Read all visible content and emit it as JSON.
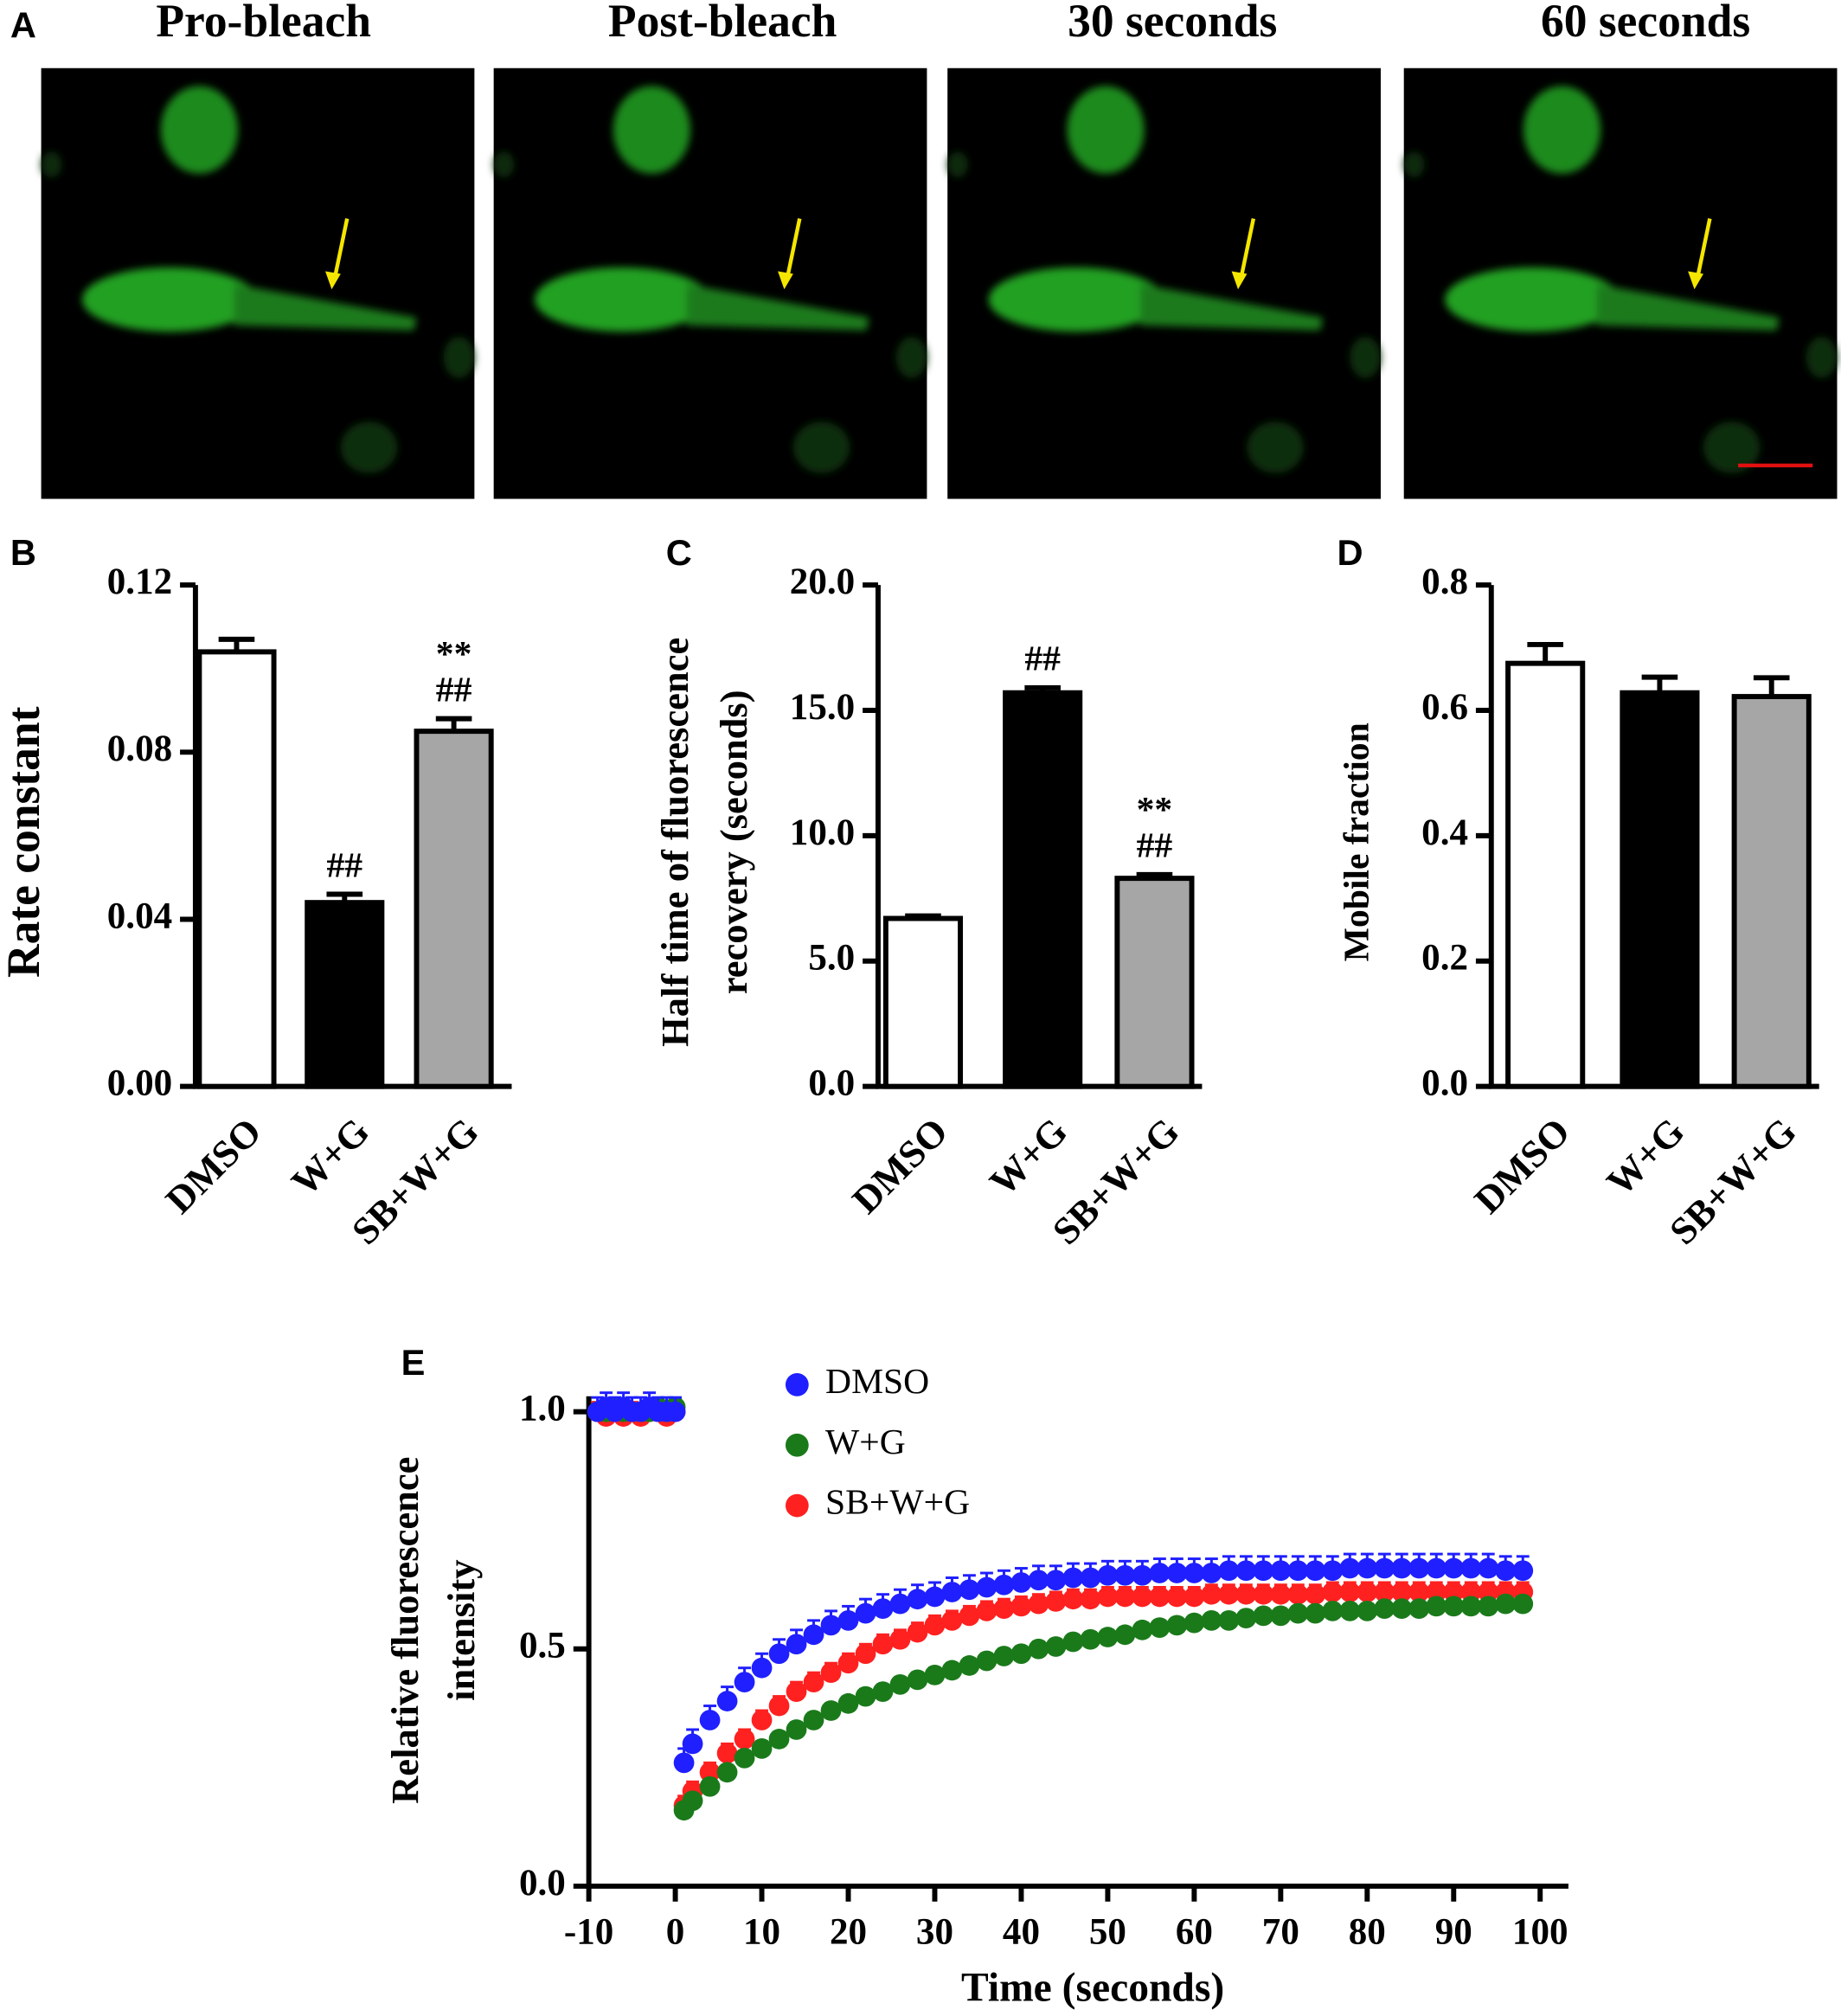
{
  "panel_a": {
    "label": "A",
    "titles": [
      "Pro-bleach",
      "Post-bleach",
      "30 seconds",
      "60 seconds"
    ]
  },
  "chart_data": [
    {
      "type": "bar",
      "label": "B",
      "ylabel": "Rate constant",
      "categories": [
        "DMSO",
        "W+G",
        "SB+W+G"
      ],
      "values": [
        0.104,
        0.044,
        0.085
      ],
      "errors": [
        0.003,
        0.002,
        0.003
      ],
      "colors": [
        "#ffffff",
        "#000000",
        "#a6a6a6"
      ],
      "bar_labels": [
        [],
        [
          "##"
        ],
        [
          "**",
          "##"
        ]
      ],
      "ylim": [
        0,
        0.12
      ],
      "yticks": [
        {
          "value": 0,
          "label": "0.00"
        },
        0.04,
        0.08,
        0.12
      ]
    },
    {
      "type": "bar",
      "label": "C",
      "ylabel": [
        "Half time of fluorescence",
        "recovery (seconds)"
      ],
      "categories": [
        "DMSO",
        "W+G",
        "SB+W+G"
      ],
      "values": [
        6.7,
        15.7,
        8.3
      ],
      "errors": [
        0.1,
        0.2,
        0.15
      ],
      "colors": [
        "#ffffff",
        "#000000",
        "#a6a6a6"
      ],
      "bar_labels": [
        [],
        [
          "##"
        ],
        [
          "**",
          "##"
        ]
      ],
      "ylim": [
        0,
        20
      ],
      "yticks": [
        {
          "value": 0,
          "label": "0.0"
        },
        {
          "value": 5,
          "label": "5.0"
        },
        {
          "value": 10,
          "label": "10.0"
        },
        {
          "value": 15,
          "label": "15.0"
        },
        {
          "value": 20,
          "label": "20.0"
        }
      ]
    },
    {
      "type": "bar",
      "label": "D",
      "ylabel": "Mobile fraction",
      "categories": [
        "DMSO",
        "W+G",
        "SB+W+G"
      ],
      "values": [
        0.675,
        0.628,
        0.622
      ],
      "errors": [
        0.03,
        0.025,
        0.03
      ],
      "colors": [
        "#ffffff",
        "#000000",
        "#a6a6a6"
      ],
      "bar_labels": [
        [],
        [],
        []
      ],
      "ylim": [
        0,
        0.8
      ],
      "yticks": [
        {
          "value": 0,
          "label": "0.0"
        },
        0.2,
        0.4,
        0.6,
        0.8
      ]
    },
    {
      "type": "scatter",
      "label": "E",
      "xlabel": "Time (seconds)",
      "ylabel": [
        "Relative fluorescence",
        "intensity"
      ],
      "legend": "top",
      "x": [
        -9,
        -8,
        -7,
        -6,
        -5,
        -4,
        -3,
        -2,
        -1,
        0,
        1,
        2,
        4,
        6,
        8,
        10,
        12,
        14,
        16,
        18,
        20,
        22,
        24,
        26,
        28,
        30,
        32,
        34,
        36,
        38,
        40,
        42,
        44,
        46,
        48,
        50,
        52,
        54,
        56,
        58,
        60,
        62,
        64,
        66,
        68,
        70,
        72,
        74,
        76,
        78,
        80,
        82,
        84,
        86,
        88,
        90,
        92,
        94,
        96,
        98
      ],
      "series": [
        {
          "name": "DMSO",
          "color": "#1f1fff",
          "error": 0.03,
          "values": [
            1.0,
            1.01,
            1.0,
            1.01,
            1.0,
            1.0,
            1.01,
            1.0,
            1.0,
            1.0,
            0.26,
            0.3,
            0.35,
            0.39,
            0.43,
            0.46,
            0.49,
            0.51,
            0.53,
            0.55,
            0.56,
            0.575,
            0.585,
            0.595,
            0.605,
            0.61,
            0.62,
            0.625,
            0.63,
            0.635,
            0.64,
            0.645,
            0.645,
            0.65,
            0.65,
            0.655,
            0.655,
            0.655,
            0.66,
            0.66,
            0.66,
            0.66,
            0.665,
            0.665,
            0.665,
            0.665,
            0.665,
            0.665,
            0.665,
            0.67,
            0.67,
            0.67,
            0.67,
            0.67,
            0.67,
            0.67,
            0.67,
            0.67,
            0.665,
            0.665
          ]
        },
        {
          "name": "W+G",
          "color": "#1a7a1a",
          "error": 0.015,
          "values": [
            1.0,
            1.0,
            1.01,
            1.0,
            1.0,
            1.0,
            1.0,
            1.01,
            1.0,
            1.01,
            0.16,
            0.18,
            0.21,
            0.24,
            0.27,
            0.29,
            0.31,
            0.33,
            0.35,
            0.37,
            0.385,
            0.4,
            0.41,
            0.425,
            0.435,
            0.445,
            0.455,
            0.465,
            0.475,
            0.485,
            0.49,
            0.5,
            0.505,
            0.515,
            0.52,
            0.525,
            0.53,
            0.54,
            0.545,
            0.55,
            0.555,
            0.56,
            0.56,
            0.565,
            0.57,
            0.57,
            0.575,
            0.575,
            0.58,
            0.58,
            0.58,
            0.585,
            0.585,
            0.585,
            0.59,
            0.59,
            0.59,
            0.59,
            0.595,
            0.595
          ]
        },
        {
          "name": "SB+W+G",
          "color": "#ff2020",
          "error": 0.02,
          "values": [
            1.0,
            0.99,
            1.0,
            0.99,
            1.0,
            0.99,
            1.0,
            1.0,
            0.99,
            1.0,
            0.17,
            0.2,
            0.24,
            0.28,
            0.31,
            0.35,
            0.38,
            0.41,
            0.43,
            0.45,
            0.47,
            0.49,
            0.51,
            0.52,
            0.535,
            0.55,
            0.56,
            0.57,
            0.58,
            0.585,
            0.59,
            0.595,
            0.6,
            0.605,
            0.605,
            0.61,
            0.61,
            0.61,
            0.61,
            0.61,
            0.61,
            0.615,
            0.615,
            0.615,
            0.615,
            0.615,
            0.615,
            0.615,
            0.62,
            0.62,
            0.62,
            0.62,
            0.62,
            0.62,
            0.62,
            0.62,
            0.62,
            0.62,
            0.62,
            0.62
          ]
        }
      ],
      "xlim": [
        -10,
        100
      ],
      "xticks": [
        -10,
        0,
        10,
        20,
        30,
        40,
        50,
        60,
        70,
        80,
        90,
        100
      ],
      "ylim": [
        0,
        1
      ],
      "yticks": [
        {
          "value": 0,
          "label": "0.0"
        },
        0.5,
        {
          "value": 1,
          "label": "1.0"
        }
      ]
    }
  ]
}
